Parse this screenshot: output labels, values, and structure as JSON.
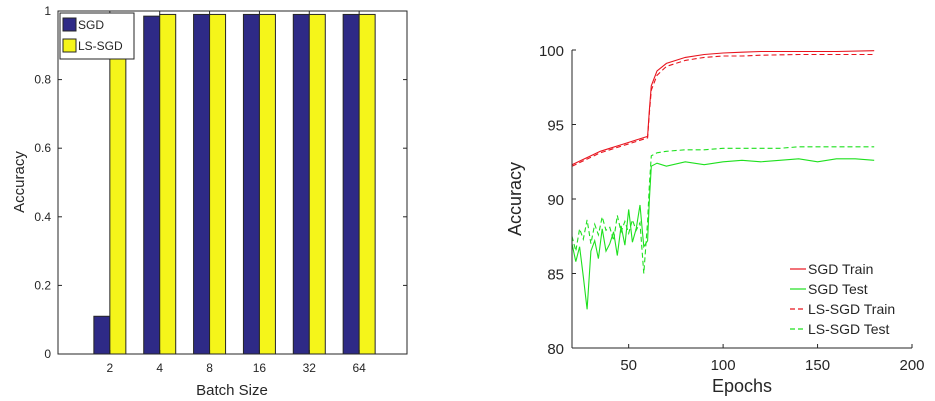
{
  "chart_data": [
    {
      "type": "bar",
      "xlabel": "Batch Size",
      "ylabel": "Accuracy",
      "categories": [
        "2",
        "4",
        "8",
        "16",
        "32",
        "64"
      ],
      "ylim": [
        0,
        1
      ],
      "yticks": [
        "0",
        "0.2",
        "0.4",
        "0.6",
        "0.8",
        "1"
      ],
      "legend_position": "top-left",
      "series": [
        {
          "name": "SGD",
          "color": "#2e2a86",
          "values": [
            0.11,
            0.985,
            0.99,
            0.99,
            0.99,
            0.99
          ]
        },
        {
          "name": "LS-SGD",
          "color": "#f5f51a",
          "values": [
            0.99,
            0.99,
            0.99,
            0.99,
            0.99,
            0.99
          ]
        }
      ]
    },
    {
      "type": "line",
      "xlabel": "Epochs",
      "ylabel": "Accuracy",
      "xlim": [
        20,
        200
      ],
      "ylim": [
        80,
        100
      ],
      "xticks": [
        "50",
        "100",
        "150",
        "200"
      ],
      "yticks": [
        "80",
        "85",
        "90",
        "95",
        "100"
      ],
      "legend_position": "bottom-right",
      "series": [
        {
          "name": "SGD Train",
          "color": "#e8141e",
          "dash": "solid",
          "x": [
            20,
            25,
            30,
            35,
            40,
            45,
            50,
            55,
            60,
            61,
            62,
            65,
            70,
            80,
            90,
            100,
            110,
            120,
            140,
            160,
            180
          ],
          "y": [
            92.3,
            92.6,
            92.9,
            93.2,
            93.4,
            93.6,
            93.8,
            94.0,
            94.2,
            96.0,
            97.6,
            98.6,
            99.1,
            99.5,
            99.7,
            99.8,
            99.85,
            99.9,
            99.9,
            99.9,
            99.95
          ]
        },
        {
          "name": "SGD Test",
          "color": "#1ee01e",
          "dash": "solid",
          "x": [
            20,
            22,
            24,
            26,
            28,
            30,
            32,
            34,
            36,
            38,
            40,
            42,
            44,
            46,
            48,
            50,
            52,
            54,
            56,
            58,
            60,
            61,
            62,
            65,
            70,
            80,
            90,
            100,
            110,
            120,
            130,
            140,
            150,
            160,
            170,
            180
          ],
          "y": [
            87.0,
            85.8,
            86.8,
            84.8,
            82.6,
            86.5,
            87.2,
            86.0,
            88.0,
            86.5,
            87.0,
            87.8,
            86.2,
            88.2,
            86.9,
            89.3,
            87.1,
            88.0,
            89.6,
            86.8,
            87.2,
            90.0,
            92.2,
            92.4,
            92.2,
            92.5,
            92.3,
            92.5,
            92.6,
            92.5,
            92.6,
            92.7,
            92.5,
            92.7,
            92.7,
            92.6
          ]
        },
        {
          "name": "LS-SGD Train",
          "color": "#e8141e",
          "dash": "dashed",
          "x": [
            20,
            25,
            30,
            35,
            40,
            45,
            50,
            55,
            60,
            61,
            62,
            65,
            70,
            80,
            90,
            100,
            110,
            120,
            140,
            160,
            180
          ],
          "y": [
            92.2,
            92.5,
            92.8,
            93.1,
            93.3,
            93.5,
            93.7,
            93.9,
            94.1,
            95.8,
            97.3,
            98.3,
            98.9,
            99.3,
            99.5,
            99.6,
            99.6,
            99.65,
            99.7,
            99.7,
            99.7
          ]
        },
        {
          "name": "LS-SGD Test",
          "color": "#1ee01e",
          "dash": "dashed",
          "x": [
            20,
            22,
            24,
            26,
            28,
            30,
            32,
            34,
            36,
            38,
            40,
            42,
            44,
            46,
            48,
            50,
            52,
            54,
            56,
            58,
            60,
            61,
            62,
            65,
            70,
            80,
            90,
            100,
            110,
            120,
            130,
            140,
            150,
            160,
            170,
            180
          ],
          "y": [
            87.5,
            86.5,
            88.0,
            87.3,
            88.6,
            87.0,
            88.3,
            87.6,
            88.8,
            87.9,
            88.1,
            87.2,
            88.9,
            87.8,
            88.5,
            87.7,
            88.6,
            87.9,
            88.4,
            85.0,
            88.5,
            91.0,
            92.9,
            93.1,
            93.2,
            93.3,
            93.3,
            93.4,
            93.4,
            93.4,
            93.4,
            93.5,
            93.5,
            93.5,
            93.5,
            93.5
          ]
        }
      ]
    }
  ]
}
